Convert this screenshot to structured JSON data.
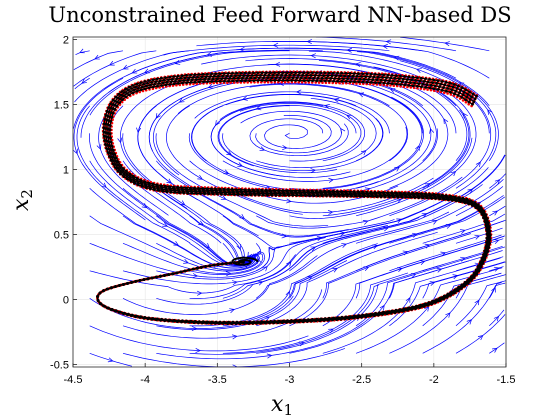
{
  "chart_data": {
    "type": "streamplot",
    "title": "Unconstrained Feed Forward NN-based DS",
    "xlabel": "x",
    "xlabel_sub": "1",
    "ylabel": "x",
    "ylabel_sub": "2",
    "xlim": [
      -4.5,
      -1.5
    ],
    "ylim": [
      -0.52,
      2.02
    ],
    "xticks": [
      -4.5,
      -4,
      -3.5,
      -3,
      -2.5,
      -2,
      -1.5
    ],
    "xtick_labels": [
      "-4.5",
      "-4",
      "-3.5",
      "-3",
      "-2.5",
      "-2",
      "-1.5"
    ],
    "yticks": [
      -0.5,
      0,
      0.5,
      1,
      1.5,
      2
    ],
    "ytick_labels": [
      "-0.5",
      "0",
      "0.5",
      "1",
      "1.5",
      "2"
    ],
    "grid": true,
    "colors": {
      "streamlines": "#0000ff",
      "demonstrations": "#ff0000",
      "reproductions": "#000000",
      "grid": "#e6e6e6"
    },
    "attractor": [
      -3.32,
      0.29
    ],
    "vortex_center": [
      -3.0,
      1.28
    ],
    "demonstration_path": [
      [
        -1.72,
        1.53
      ],
      [
        -1.9,
        1.63
      ],
      [
        -2.3,
        1.69
      ],
      [
        -2.8,
        1.71
      ],
      [
        -3.3,
        1.71
      ],
      [
        -3.75,
        1.69
      ],
      [
        -4.05,
        1.63
      ],
      [
        -4.2,
        1.52
      ],
      [
        -4.26,
        1.35
      ],
      [
        -4.24,
        1.15
      ],
      [
        -4.14,
        0.97
      ],
      [
        -3.9,
        0.86
      ],
      [
        -3.4,
        0.83
      ],
      [
        -2.9,
        0.82
      ],
      [
        -2.4,
        0.81
      ],
      [
        -1.95,
        0.79
      ],
      [
        -1.7,
        0.72
      ],
      [
        -1.62,
        0.52
      ],
      [
        -1.66,
        0.3
      ],
      [
        -1.78,
        0.12
      ],
      [
        -2.05,
        -0.04
      ],
      [
        -2.5,
        -0.13
      ],
      [
        -3.0,
        -0.17
      ],
      [
        -3.5,
        -0.18
      ],
      [
        -3.95,
        -0.15
      ],
      [
        -4.2,
        -0.09
      ],
      [
        -4.32,
        -0.02
      ],
      [
        -4.3,
        0.06
      ],
      [
        -4.1,
        0.13
      ],
      [
        -3.8,
        0.2
      ],
      [
        -3.55,
        0.26
      ],
      [
        -3.32,
        0.29
      ]
    ],
    "demonstration_offsets": [
      -0.06,
      -0.03,
      0.0,
      0.03,
      0.06
    ],
    "reproduction_offsets": [
      -0.04,
      -0.01,
      0.02,
      0.05
    ]
  }
}
